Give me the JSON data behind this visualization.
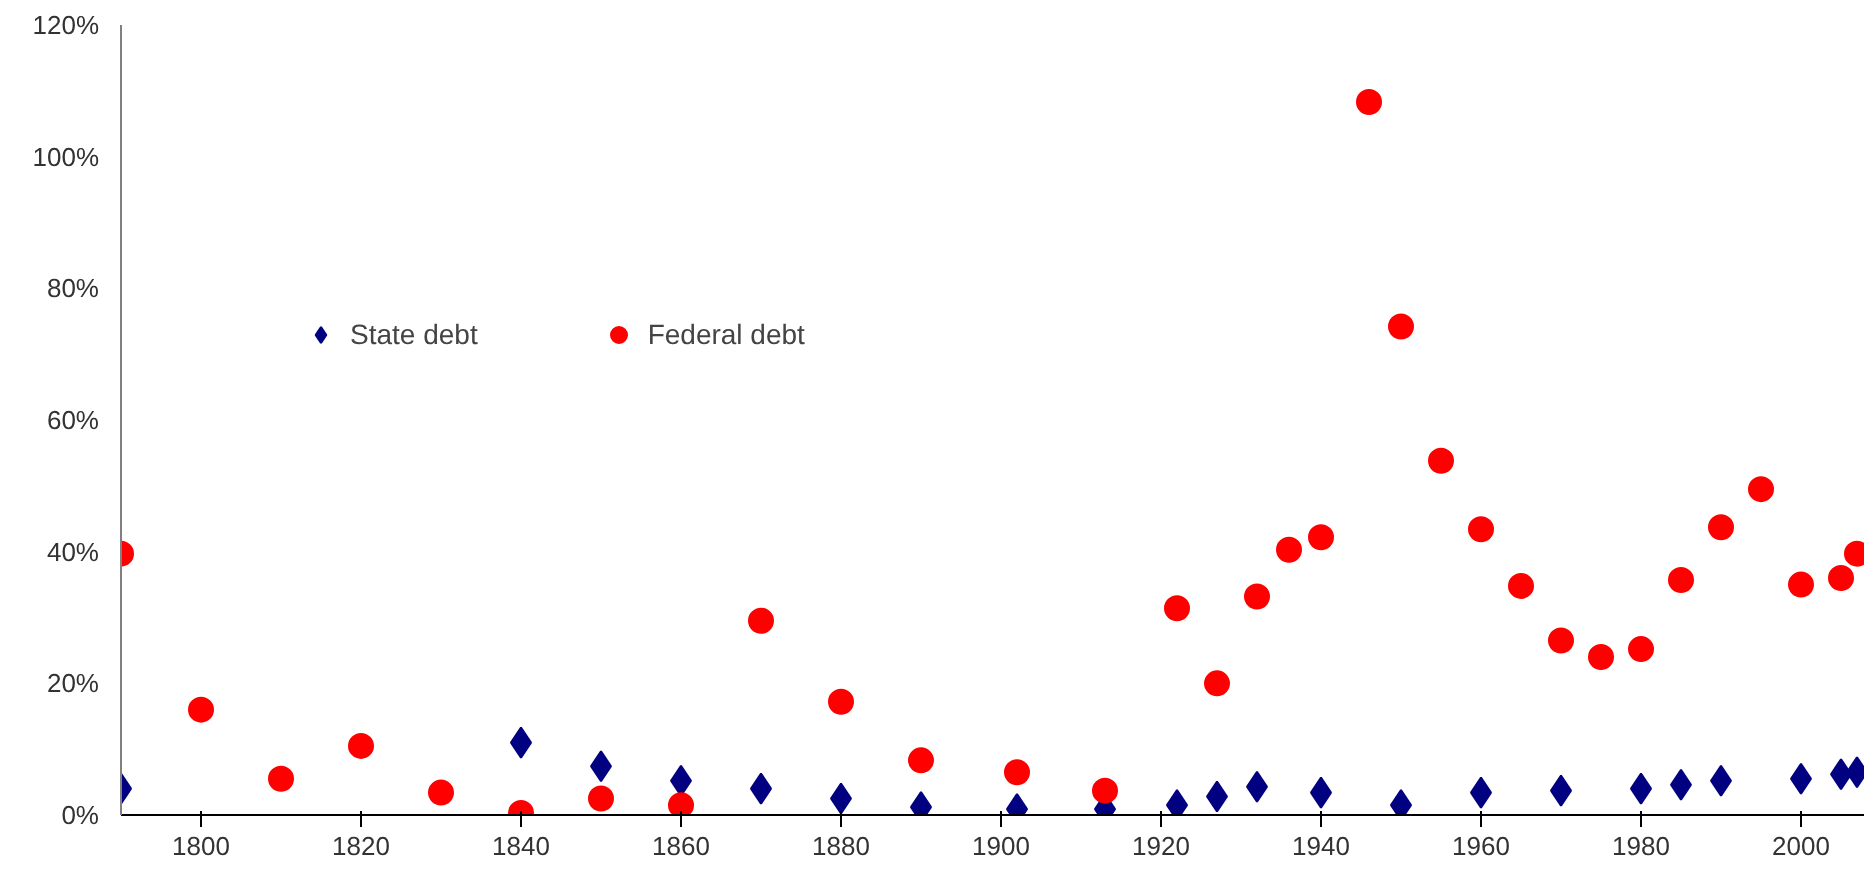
{
  "chart_data": {
    "type": "scatter",
    "x": [
      1790,
      1800,
      1810,
      1820,
      1830,
      1840,
      1850,
      1860,
      1870,
      1880,
      1890,
      1902,
      1913,
      1922,
      1927,
      1932,
      1936,
      1940,
      1946,
      1950,
      1955,
      1960,
      1965,
      1970,
      1975,
      1980,
      1985,
      1990,
      1995,
      2000,
      2005,
      2007
    ],
    "series": [
      {
        "name": "State debt",
        "color": "#000080",
        "marker": "diamond",
        "x": [
          1790,
          1840,
          1850,
          1860,
          1870,
          1880,
          1890,
          1902,
          1913,
          1922,
          1927,
          1932,
          1940,
          1950,
          1960,
          1970,
          1980,
          1985,
          1990,
          2000,
          2005,
          2007
        ],
        "values": [
          4,
          11,
          7.4,
          5.2,
          4,
          2.5,
          1.2,
          0.9,
          0.9,
          1.5,
          2.8,
          4.3,
          3.4,
          1.5,
          3.4,
          3.7,
          4,
          4.6,
          5.2,
          5.5,
          6.2,
          6.5
        ]
      },
      {
        "name": "Federal debt",
        "color": "#ff0000",
        "marker": "circle",
        "values": [
          39.7,
          16,
          5.5,
          10.5,
          3.4,
          0.3,
          2.5,
          1.5,
          29.5,
          17.2,
          8.3,
          6.5,
          3.7,
          31.4,
          20,
          33.2,
          40.3,
          42.2,
          108.3,
          74.2,
          53.8,
          43.4,
          34.8,
          26.5,
          24,
          25.2,
          35.7,
          43.7,
          49.5,
          35,
          36,
          39.7
        ]
      }
    ],
    "xlim": [
      1790,
      2008
    ],
    "xticks": [
      1800,
      1820,
      1840,
      1860,
      1880,
      1900,
      1920,
      1940,
      1960,
      1980,
      2000
    ],
    "ylim": [
      0,
      120
    ],
    "yticks": [
      {
        "value": 0,
        "label": "0%"
      },
      {
        "value": 20,
        "label": "20%"
      },
      {
        "value": 40,
        "label": "40%"
      },
      {
        "value": 60,
        "label": "60%"
      },
      {
        "value": 80,
        "label": "80%"
      },
      {
        "value": 100,
        "label": "100%"
      },
      {
        "value": 120,
        "label": "120%"
      }
    ],
    "grid": false,
    "legend": "top left"
  }
}
